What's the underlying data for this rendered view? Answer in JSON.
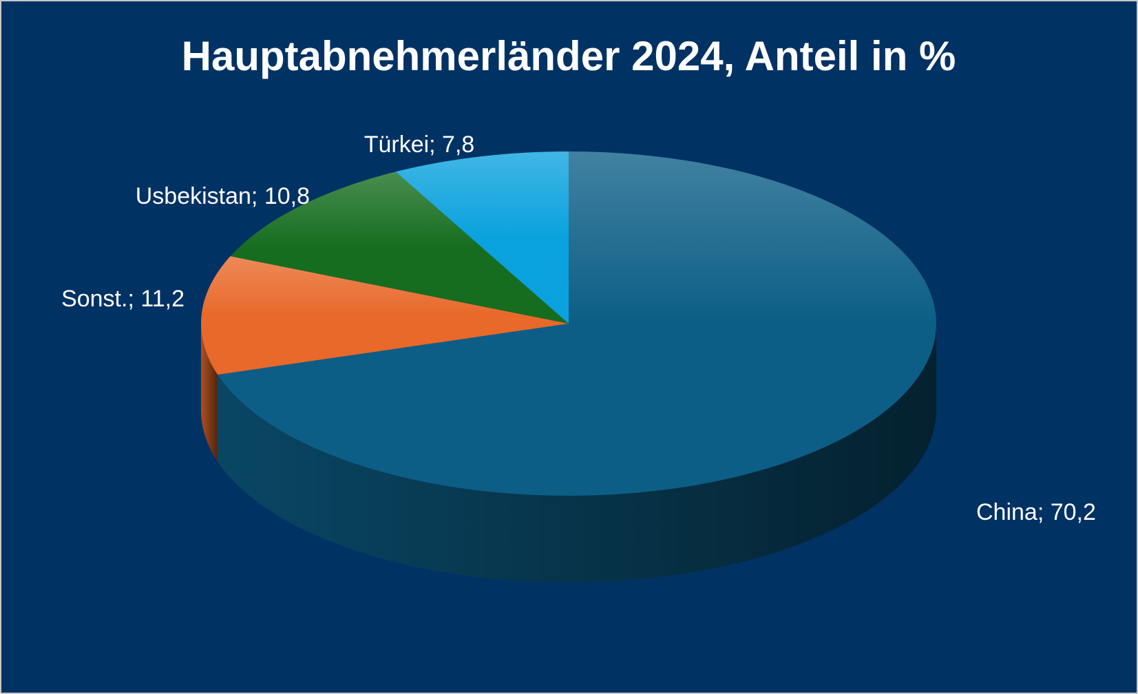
{
  "chart_data": {
    "type": "pie",
    "title": "Hauptabnehmerländer 2024, Anteil in %",
    "values": [
      70.2,
      11.2,
      10.8,
      7.8
    ],
    "value_labels": [
      "China; 70,2",
      "Sonst.; 11,2",
      "Usbekistan; 10,8",
      "Türkei; 7,8"
    ],
    "colors": [
      "#0c5e86",
      "#e8692a",
      "#166d1f",
      "#0aa2de"
    ]
  }
}
